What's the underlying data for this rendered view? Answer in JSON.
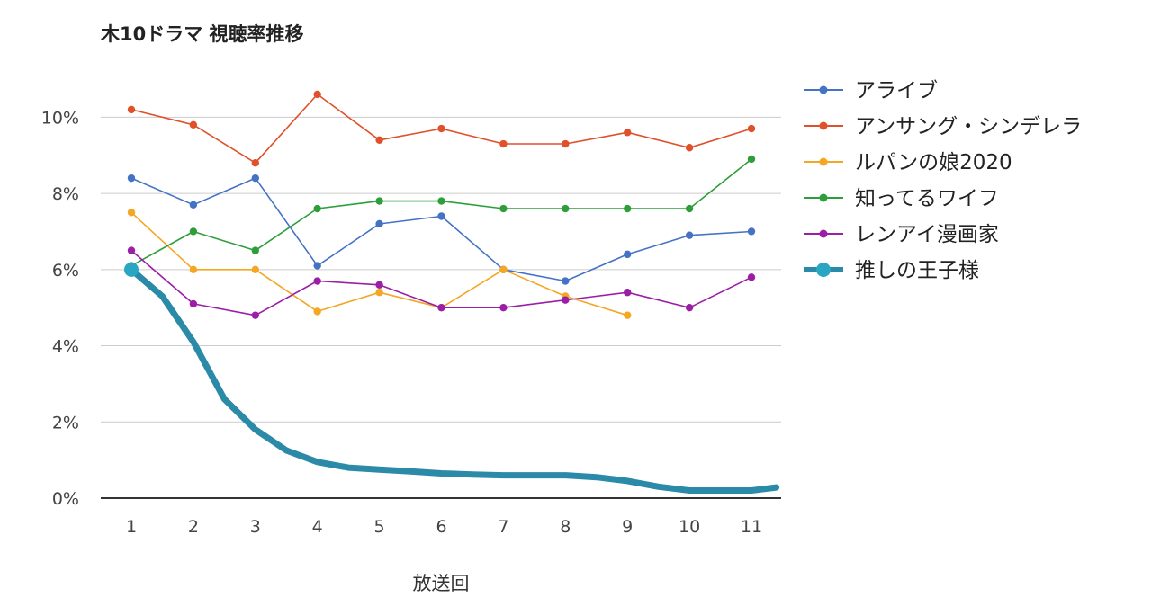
{
  "chart_data": {
    "type": "line",
    "title": "木10ドラマ 視聴率推移",
    "xlabel": "放送回",
    "ylabel": "",
    "categories": [
      "1",
      "2",
      "3",
      "4",
      "5",
      "6",
      "7",
      "8",
      "9",
      "10",
      "11"
    ],
    "ylim": [
      0,
      11
    ],
    "yticks": [
      "0%",
      "2%",
      "4%",
      "6%",
      "8%",
      "10%"
    ],
    "ytick_values": [
      0,
      2,
      4,
      6,
      8,
      10
    ],
    "grid": true,
    "legend_position": "right",
    "series": [
      {
        "name": "アライブ",
        "color": "#4472c4",
        "values": [
          8.4,
          7.7,
          8.4,
          6.1,
          7.2,
          7.4,
          6.0,
          5.7,
          6.4,
          6.9,
          7.0
        ]
      },
      {
        "name": "アンサング・シンデレラ",
        "color": "#e0502a",
        "values": [
          10.2,
          9.8,
          8.8,
          10.6,
          9.4,
          9.7,
          9.3,
          9.3,
          9.6,
          9.2,
          9.7
        ]
      },
      {
        "name": "ルパンの娘2020",
        "color": "#f5a623",
        "values": [
          7.5,
          6.0,
          6.0,
          4.9,
          5.4,
          5.0,
          6.0,
          5.3,
          4.8,
          null,
          null
        ]
      },
      {
        "name": "知ってるワイフ",
        "color": "#2e9e3a",
        "values": [
          6.1,
          7.0,
          6.5,
          7.6,
          7.8,
          7.8,
          7.6,
          7.6,
          7.6,
          7.6,
          8.9
        ]
      },
      {
        "name": "レンアイ漫画家",
        "color": "#9b1fa6",
        "values": [
          6.5,
          5.1,
          4.8,
          5.7,
          5.6,
          5.0,
          5.0,
          5.2,
          5.4,
          5.0,
          5.8
        ]
      },
      {
        "name": "推しの王子様",
        "color": "#2a8aa8",
        "x": [
          1,
          1.5,
          2,
          2.5,
          3,
          3.5,
          4,
          4.5,
          5,
          5.5,
          6,
          6.5,
          7,
          7.5,
          8,
          8.5,
          9,
          9.5,
          10,
          10.5,
          11,
          11.4
        ],
        "values": [
          6.0,
          5.3,
          4.1,
          2.6,
          1.8,
          1.25,
          0.95,
          0.8,
          0.75,
          0.7,
          0.65,
          0.62,
          0.6,
          0.6,
          0.6,
          0.55,
          0.45,
          0.3,
          0.2,
          0.2,
          0.2,
          0.28
        ]
      }
    ]
  }
}
